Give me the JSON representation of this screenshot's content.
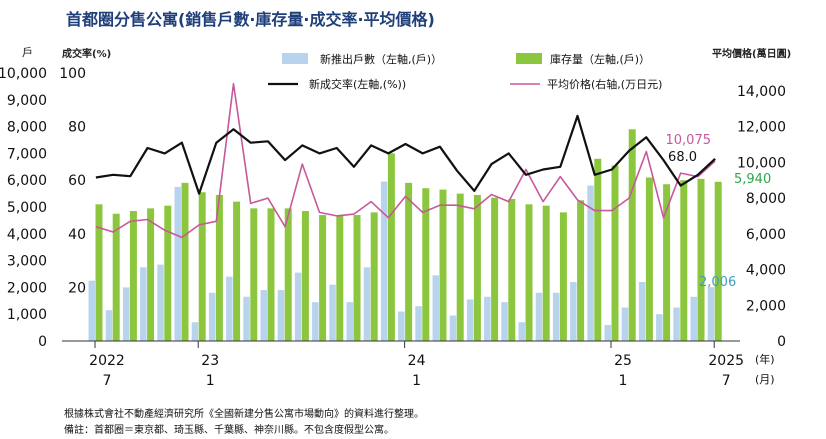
{
  "header": {
    "title": "首都圈分售公寓(銷售戶數·庫存量·成交率·平均價格)",
    "left_unit": "戶",
    "rate_axis_label": "成交率(%)",
    "right_axis_label": "平均價格(萬日圓)"
  },
  "legend": {
    "new_units": "新推出戶數（左軸,(戶)）",
    "inventory": "庫存量（左軸,(戶)）",
    "rate": "新成交率(左軸,(%))",
    "price": "平均价格(右轴,(万日元)"
  },
  "annotations": {
    "price_last": "10,075",
    "rate_last": "68.0",
    "inventory_last": "5,940",
    "new_units_last": "2,006"
  },
  "x_axis": {
    "year_unit": "(年)",
    "month_unit": "(月)",
    "ticks": [
      {
        "year": "2022",
        "month": "7",
        "index": 0
      },
      {
        "year": "23",
        "month": "1",
        "index": 6
      },
      {
        "year": "24",
        "month": "1",
        "index": 18
      },
      {
        "year": "25",
        "month": "1",
        "index": 30
      },
      {
        "year": "2025",
        "month": "7",
        "index": 36
      }
    ]
  },
  "notes": {
    "source": "根據株式會社不動產經濟研究所《全國新建分售公寓市場動向》的資料進行整理。",
    "remark": "備註：首都圈＝東京都、琦玉縣、千葉縣、神奈川縣。不包含度假型公寓。"
  },
  "colors": {
    "new_units": "#b8d3ec",
    "inventory": "#8cc63f",
    "rate": "#111111",
    "price": "#c8589a",
    "price_label": "#c8589a",
    "inventory_label": "#2aa84a",
    "new_units_label": "#3aa0c0",
    "title": "#1f3f7a"
  },
  "chart_data": {
    "type": "bar",
    "months": [
      "2022-07",
      "2022-08",
      "2022-09",
      "2022-10",
      "2022-11",
      "2022-12",
      "2023-01",
      "2023-02",
      "2023-03",
      "2023-04",
      "2023-05",
      "2023-06",
      "2023-07",
      "2023-08",
      "2023-09",
      "2023-10",
      "2023-11",
      "2023-12",
      "2024-01",
      "2024-02",
      "2024-03",
      "2024-04",
      "2024-05",
      "2024-06",
      "2024-07",
      "2024-08",
      "2024-09",
      "2024-10",
      "2024-11",
      "2024-12",
      "2025-01",
      "2025-02",
      "2025-03",
      "2025-04",
      "2025-05",
      "2025-06",
      "2025-07"
    ],
    "series": [
      {
        "name": "新推出戶數",
        "axis": "left",
        "unit": "戶",
        "values": [
          2250,
          1150,
          2000,
          2750,
          2850,
          5750,
          700,
          1800,
          2400,
          1650,
          1900,
          1900,
          2550,
          1450,
          2100,
          1450,
          2750,
          5950,
          1100,
          1300,
          2450,
          950,
          1550,
          1650,
          1450,
          700,
          1800,
          1800,
          2200,
          5800,
          600,
          1250,
          2200,
          1000,
          1250,
          1650,
          2006
        ]
      },
      {
        "name": "庫存量",
        "axis": "left",
        "unit": "戶",
        "values": [
          5100,
          4750,
          4850,
          4950,
          5050,
          5900,
          5550,
          5450,
          5200,
          4950,
          4950,
          4950,
          4850,
          4700,
          4700,
          4700,
          4800,
          7000,
          5900,
          5700,
          5650,
          5500,
          5450,
          5350,
          5300,
          5100,
          5050,
          4800,
          5250,
          6800,
          6550,
          7900,
          6100,
          5850,
          6000,
          6050,
          5940
        ]
      },
      {
        "name": "新成交率",
        "axis": "rate",
        "unit": "%",
        "values": [
          61,
          62,
          61.5,
          72,
          70,
          74,
          55,
          74,
          79,
          74,
          74.5,
          67.5,
          73,
          70,
          72,
          65,
          73,
          70,
          73.5,
          70,
          72.5,
          63.5,
          56,
          66,
          70,
          62,
          64,
          65,
          84,
          62,
          64,
          71,
          76,
          67.5,
          58,
          62,
          68
        ]
      },
      {
        "name": "平均价格",
        "axis": "right",
        "unit": "万日元",
        "values": [
          6400,
          6100,
          6700,
          6800,
          6200,
          5800,
          6500,
          6700,
          14400,
          7700,
          8000,
          6400,
          9900,
          7200,
          7000,
          7100,
          7800,
          6900,
          8100,
          7200,
          7600,
          7600,
          7400,
          8200,
          7800,
          9600,
          7800,
          9200,
          7900,
          7300,
          7300,
          8000,
          10600,
          6900,
          9400,
          9200,
          10075
        ]
      }
    ],
    "left_axis": {
      "min": 0,
      "max": 10000,
      "ticks": [
        "0",
        "1,000",
        "2,000",
        "3,000",
        "4,000",
        "5,000",
        "6,000",
        "7,000",
        "8,000",
        "9,000",
        "10,000"
      ]
    },
    "rate_axis": {
      "min": 0,
      "max": 100,
      "ticks": [
        "20",
        "40",
        "60",
        "80",
        "100"
      ]
    },
    "right_axis": {
      "min": 0,
      "max": 15000,
      "ticks": [
        "0",
        "2,000",
        "4,000",
        "6,000",
        "8,000",
        "10,000",
        "12,000",
        "14,000"
      ]
    }
  }
}
